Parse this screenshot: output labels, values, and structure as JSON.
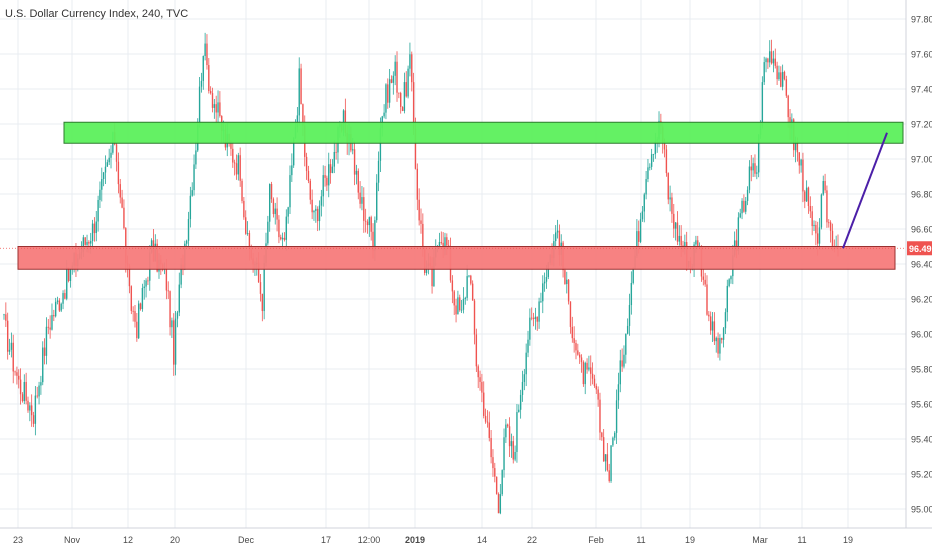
{
  "header": {
    "symbol_title": "U.S. Dollar Currency Index, 240, TVC"
  },
  "colors": {
    "up": "#26a69a",
    "down": "#ef5350",
    "resistance_fill": "#5cf05c",
    "support_fill": "#f77b7b",
    "projection_line": "#4b1fa8",
    "price_tag_bg": "#ef5350",
    "grid": "#e9ecf2",
    "axis_text": "#4a4a4a"
  },
  "chart_data": {
    "type": "candlestick",
    "title": "U.S. Dollar Currency Index, 240, TVC",
    "timeframe": "240",
    "grid": true,
    "ylim": [
      94.9,
      97.85
    ],
    "y_ticks": [
      "95.00",
      "95.20",
      "95.40",
      "95.60",
      "95.80",
      "96.00",
      "96.20",
      "96.40",
      "96.60",
      "96.80",
      "97.00",
      "97.20",
      "97.40",
      "97.60",
      "97.80"
    ],
    "x_ticks": [
      "23",
      "Nov",
      "12",
      "20",
      "Dec",
      "17",
      "12:00",
      "2019",
      "14",
      "22",
      "Feb",
      "11",
      "19",
      "Mar",
      "11",
      "19"
    ],
    "last_price": "96.49",
    "close_path": [
      [
        0,
        96.05
      ],
      [
        2,
        95.72
      ],
      [
        4,
        95.55
      ],
      [
        6,
        96.05
      ],
      [
        8,
        96.25
      ],
      [
        10,
        96.45
      ],
      [
        12,
        96.6
      ],
      [
        14,
        96.95
      ],
      [
        15,
        97.12
      ],
      [
        16,
        96.7
      ],
      [
        17,
        96.2
      ],
      [
        18,
        96.05
      ],
      [
        20,
        96.48
      ],
      [
        21,
        96.4
      ],
      [
        22,
        96.3
      ],
      [
        23,
        95.9
      ],
      [
        24,
        96.35
      ],
      [
        25,
        96.7
      ],
      [
        26,
        97.1
      ],
      [
        27,
        97.65
      ],
      [
        28,
        97.4
      ],
      [
        30,
        97.1
      ],
      [
        32,
        96.95
      ],
      [
        33,
        96.5
      ],
      [
        34,
        96.4
      ],
      [
        35,
        96.2
      ],
      [
        36,
        96.8
      ],
      [
        37,
        96.6
      ],
      [
        38,
        96.5
      ],
      [
        39,
        96.95
      ],
      [
        40,
        97.45
      ],
      [
        41,
        96.9
      ],
      [
        42,
        96.65
      ],
      [
        44,
        96.95
      ],
      [
        46,
        97.2
      ],
      [
        47,
        97.1
      ],
      [
        48,
        96.8
      ],
      [
        50,
        96.55
      ],
      [
        51,
        97.2
      ],
      [
        52,
        97.4
      ],
      [
        53,
        97.5
      ],
      [
        54,
        97.3
      ],
      [
        55,
        97.55
      ],
      [
        56,
        96.8
      ],
      [
        57,
        96.4
      ],
      [
        58,
        96.3
      ],
      [
        59,
        96.6
      ],
      [
        60,
        96.5
      ],
      [
        61,
        96.2
      ],
      [
        62,
        96.1
      ],
      [
        63,
        96.4
      ],
      [
        64,
        95.85
      ],
      [
        65,
        95.6
      ],
      [
        66,
        95.3
      ],
      [
        67,
        95.05
      ],
      [
        68,
        95.45
      ],
      [
        69,
        95.3
      ],
      [
        70,
        95.7
      ],
      [
        71,
        96.0
      ],
      [
        72,
        96.1
      ],
      [
        73,
        96.3
      ],
      [
        74,
        96.45
      ],
      [
        75,
        96.6
      ],
      [
        76,
        96.3
      ],
      [
        77,
        96.05
      ],
      [
        78,
        95.8
      ],
      [
        79,
        95.75
      ],
      [
        80,
        95.7
      ],
      [
        81,
        95.4
      ],
      [
        82,
        95.2
      ],
      [
        83,
        95.6
      ],
      [
        84,
        95.95
      ],
      [
        85,
        96.3
      ],
      [
        86,
        96.6
      ],
      [
        87,
        96.95
      ],
      [
        88,
        97.1
      ],
      [
        89,
        97.2
      ],
      [
        90,
        96.8
      ],
      [
        91,
        96.6
      ],
      [
        92,
        96.5
      ],
      [
        93,
        96.4
      ],
      [
        94,
        96.55
      ],
      [
        95,
        96.25
      ],
      [
        96,
        96.0
      ],
      [
        97,
        95.9
      ],
      [
        98,
        96.2
      ],
      [
        99,
        96.5
      ],
      [
        100,
        96.7
      ],
      [
        101,
        96.9
      ],
      [
        102,
        96.95
      ],
      [
        103,
        97.55
      ],
      [
        104,
        97.62
      ],
      [
        105,
        97.5
      ],
      [
        106,
        97.35
      ],
      [
        107,
        97.1
      ],
      [
        108,
        96.95
      ],
      [
        109,
        96.7
      ],
      [
        110,
        96.5
      ],
      [
        111,
        96.8
      ],
      [
        112,
        96.58
      ],
      [
        113,
        96.49
      ]
    ],
    "zones": [
      {
        "name": "resistance",
        "from": 97.09,
        "to": 97.21
      },
      {
        "name": "support",
        "from": 96.37,
        "to": 96.5
      }
    ],
    "projection": {
      "from": 96.49,
      "to": 97.15
    }
  }
}
